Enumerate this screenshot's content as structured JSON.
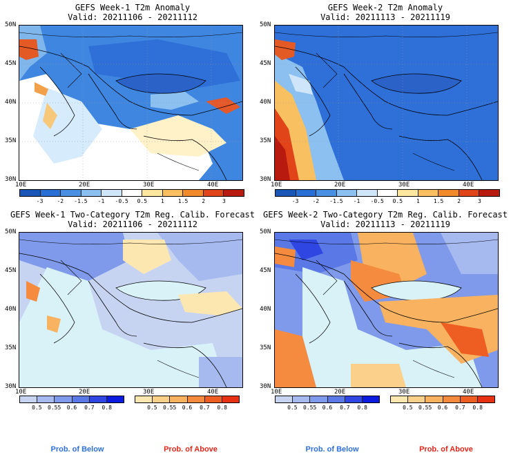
{
  "panels": [
    {
      "id": "w1-anom",
      "title_line1": "GEFS Week-1 T2m Anomaly",
      "title_line2": "Valid: 20211106 - 20211112"
    },
    {
      "id": "w2-anom",
      "title_line1": "GEFS Week-2 T2m Anomaly",
      "title_line2": "Valid: 20211113 - 20211119"
    },
    {
      "id": "w1-prob",
      "title_line1": "GEFS Week-1 Two-Category T2m Reg. Calib. Forecast",
      "title_line2": "Valid: 20211106 - 20211112"
    },
    {
      "id": "w2-prob",
      "title_line1": "GEFS Week-2 Two-Category T2m Reg. Calib. Forecast",
      "title_line2": "Valid: 20211113 - 20211119"
    }
  ],
  "axes": {
    "lat_labels": [
      "50N",
      "45N",
      "40N",
      "35N",
      "30N"
    ],
    "lon_labels": [
      "10E",
      "20E",
      "30E",
      "40E"
    ]
  },
  "anomaly_colorbar": {
    "labels": [
      "-3",
      "-2",
      "-1.5",
      "-1",
      "-0.5",
      "0.5",
      "1",
      "1.5",
      "2",
      "3"
    ],
    "colors": [
      "#1a55b8",
      "#2a6fd6",
      "#4a90e2",
      "#8cc0f0",
      "#cfe6fa",
      "#ffffff",
      "#ffe7a0",
      "#f8c060",
      "#f08a2a",
      "#e04418",
      "#b81a10"
    ]
  },
  "prob_below_colorbar": {
    "labels": [
      "0.5",
      "0.55",
      "0.6",
      "0.7",
      "0.8"
    ],
    "colors": [
      "#c6d4f2",
      "#a6baef",
      "#7f9aea",
      "#5a78e6",
      "#2f46e2",
      "#0a1adf"
    ]
  },
  "prob_above_colorbar": {
    "labels": [
      "0.5",
      "0.55",
      "0.6",
      "0.7",
      "0.8"
    ],
    "colors": [
      "#fde7b0",
      "#fbd08a",
      "#f8b260",
      "#f48b3e",
      "#ee5e22",
      "#e63212"
    ]
  },
  "legend": {
    "below": "Prob. of Below",
    "above": "Prob. of Above",
    "below_color": "#2f6fd8",
    "above_color": "#e0261a"
  }
}
